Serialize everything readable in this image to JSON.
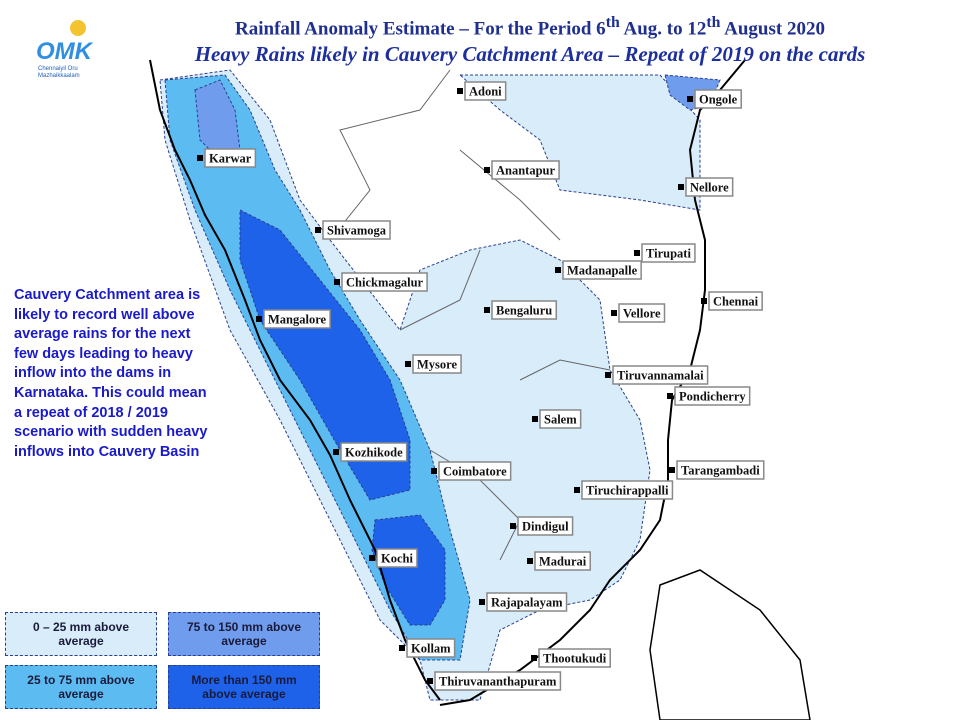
{
  "header": {
    "title": [
      "Rainfall Anomaly Estimate – For the Period 6",
      "th",
      " Aug. to 12",
      "th",
      " August 2020"
    ],
    "subtitle": "Heavy Rains likely in Cauvery Catchment Area – Repeat of 2019 on the cards"
  },
  "logo": {
    "name": "OMK",
    "tagline": "Chennaiyil Oru Mazhaikkaalam"
  },
  "note": [
    "Cauvery Catchment area is",
    "likely to record well above",
    "average rains for the next",
    "few days leading to heavy",
    "inflow into the dams in",
    "Karnataka.  This could mean",
    "a repeat of 2018 / 2019",
    "scenario with sudden heavy",
    "inflows into Cauvery Basin"
  ],
  "cities": [
    "Adoni",
    "Ongole",
    "Karwar",
    "Anantapur",
    "Nellore",
    "Shivamoga",
    "Tirupati",
    "Madanapalle",
    "Chickmagalur",
    "Chennai",
    "Bengaluru",
    "Vellore",
    "Mangalore",
    "Mysore",
    "Tiruvannamalai",
    "Pondicherry",
    "Salem",
    "Kozhikode",
    "Coimbatore",
    "Tarangambadi",
    "Tiruchirappalli",
    "Dindigul",
    "Madurai",
    "Kochi",
    "Rajapalayam",
    "Kollam",
    "Thootukudi",
    "Thiruvananthapuram"
  ],
  "legend": [
    {
      "label": "0 – 25 mm above average",
      "color": "#d8ecfa"
    },
    {
      "label": "75 to 150 mm above average",
      "color": "#6f9cec"
    },
    {
      "label": "25 to 75 mm above average",
      "color": "#5cbcf2"
    },
    {
      "label": "More than 150 mm above average",
      "color": "#1e62ea"
    }
  ]
}
